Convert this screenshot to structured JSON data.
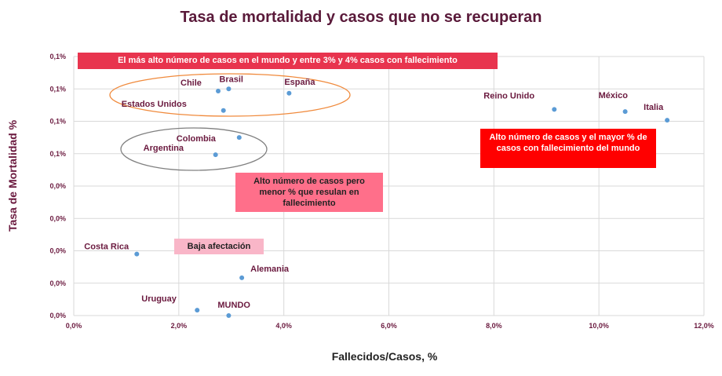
{
  "chart_data": {
    "type": "scatter",
    "title": "Tasa de mortalidad y  casos que no se recuperan",
    "xlabel": "Fallecidos/Casos, %",
    "ylabel": "Tasa de Mortalidad %",
    "xlim": [
      0,
      12
    ],
    "ylim": [
      0,
      0.12
    ],
    "x_ticks": [
      "0,0%",
      "2,0%",
      "4,0%",
      "6,0%",
      "8,0%",
      "10,0%",
      "12,0%"
    ],
    "y_ticks": [
      "0,0%",
      "0,0%",
      "0,0%",
      "0,0%",
      "0,0%",
      "0,1%",
      "0,1%",
      "0,1%",
      "0,1%"
    ],
    "y_tick_values": [
      0,
      0.015,
      0.03,
      0.045,
      0.06,
      0.075,
      0.09,
      0.105,
      0.12
    ],
    "grid": true,
    "marker_color": "#5b9bd5",
    "points": [
      {
        "label": "Chile",
        "x": 2.75,
        "y": 0.104
      },
      {
        "label": "Brasil",
        "x": 2.95,
        "y": 0.105
      },
      {
        "label": "España",
        "x": 4.1,
        "y": 0.103
      },
      {
        "label": "Estados Unidos",
        "x": 2.85,
        "y": 0.095
      },
      {
        "label": "Reino Unido",
        "x": 9.15,
        "y": 0.0955
      },
      {
        "label": "México",
        "x": 10.5,
        "y": 0.0945
      },
      {
        "label": "Italia",
        "x": 11.3,
        "y": 0.0905
      },
      {
        "label": "Colombia",
        "x": 3.15,
        "y": 0.0825
      },
      {
        "label": "Argentina",
        "x": 2.7,
        "y": 0.0745
      },
      {
        "label": "Costa Rica",
        "x": 1.2,
        "y": 0.0285
      },
      {
        "label": "Alemania",
        "x": 3.2,
        "y": 0.0175
      },
      {
        "label": "Uruguay",
        "x": 2.35,
        "y": 0.0025
      },
      {
        "label": "MUNDO",
        "x": 2.95,
        "y": 0.0
      }
    ],
    "annotations": {
      "top_banner": "El más alto número de casos  en el mundo y entre 3% y 4% casos con fallecimiento",
      "red_box": "Alto número de casos y el mayor % de casos con fallecimiento del mundo",
      "pink_box": "Alto número de casos  pero menor % que resulan en fallecimiento",
      "low_box": "Baja afectación"
    },
    "annotation_colors": {
      "top_banner": "#e8344e",
      "red_box": "#ff0000",
      "pink_box": "#ff6f8a",
      "low_box": "#f9b6c8",
      "orange_ellipse": "#f08a3c",
      "gray_ellipse": "#808080"
    }
  }
}
